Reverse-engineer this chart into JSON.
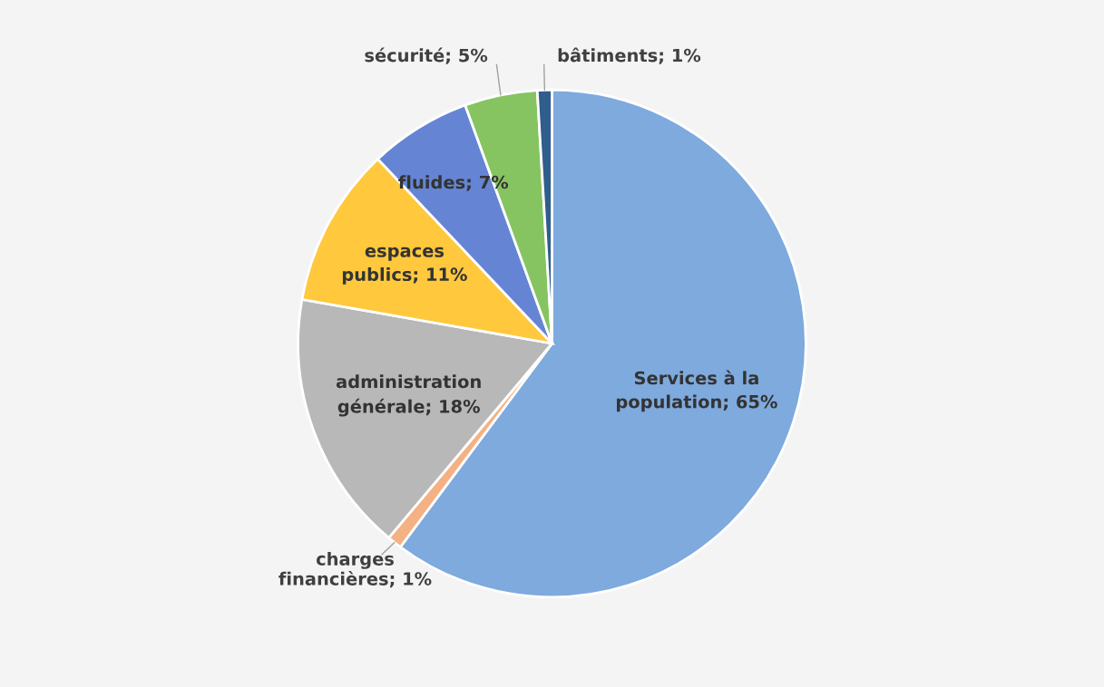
{
  "chart_data": {
    "type": "pie",
    "categories": [
      "Services à la population",
      "charges financières",
      "administration générale",
      "espaces publics",
      "fluides",
      "sécurité",
      "bâtiments"
    ],
    "values": [
      65,
      1,
      18,
      11,
      7,
      5,
      1
    ],
    "value_labels": [
      "65%",
      "1%",
      "18%",
      "11%",
      "7%",
      "5%",
      "1%"
    ],
    "colors": [
      "#7eaade",
      "#f4b183",
      "#b8b8b8",
      "#ffc83d",
      "#6585d4",
      "#86c461",
      "#2f5d8c"
    ],
    "legend": false
  }
}
